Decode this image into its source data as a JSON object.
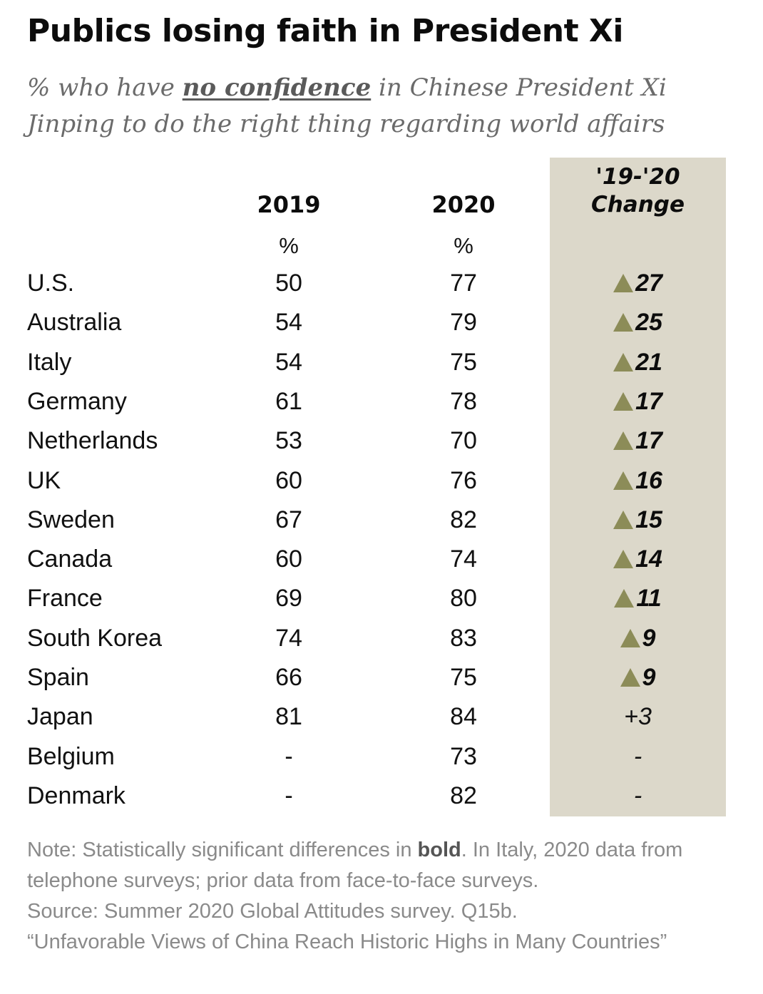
{
  "title": "Publics losing faith in President Xi",
  "subtitle": {
    "before": "% who have ",
    "emphasis": "no confidence",
    "after": " in Chinese President Xi Jinping to do the right thing regarding world affairs"
  },
  "columns": {
    "y2019": "2019",
    "y2020": "2020",
    "change_line1": "'19-'20",
    "change_line2": "Change",
    "unit": "%"
  },
  "colors": {
    "change_column_bg": "#dcd8ca",
    "increase_arrow": "#8c8c58"
  },
  "chart_data": {
    "type": "table",
    "title": "Publics losing faith in President Xi",
    "subtitle": "% who have no confidence in Chinese President Xi Jinping to do the right thing regarding world affairs",
    "headers": [
      "2019",
      "2020",
      "'19-'20 Change"
    ],
    "rows": [
      {
        "country": "U.S.",
        "y2019": "50",
        "y2020": "77",
        "change": "27",
        "significant": true,
        "arrow": true
      },
      {
        "country": "Australia",
        "y2019": "54",
        "y2020": "79",
        "change": "25",
        "significant": true,
        "arrow": true
      },
      {
        "country": "Italy",
        "y2019": "54",
        "y2020": "75",
        "change": "21",
        "significant": true,
        "arrow": true
      },
      {
        "country": "Germany",
        "y2019": "61",
        "y2020": "78",
        "change": "17",
        "significant": true,
        "arrow": true
      },
      {
        "country": "Netherlands",
        "y2019": "53",
        "y2020": "70",
        "change": "17",
        "significant": true,
        "arrow": true
      },
      {
        "country": "UK",
        "y2019": "60",
        "y2020": "76",
        "change": "16",
        "significant": true,
        "arrow": true
      },
      {
        "country": "Sweden",
        "y2019": "67",
        "y2020": "82",
        "change": "15",
        "significant": true,
        "arrow": true
      },
      {
        "country": "Canada",
        "y2019": "60",
        "y2020": "74",
        "change": "14",
        "significant": true,
        "arrow": true
      },
      {
        "country": "France",
        "y2019": "69",
        "y2020": "80",
        "change": "11",
        "significant": true,
        "arrow": true
      },
      {
        "country": "South Korea",
        "y2019": "74",
        "y2020": "83",
        "change": "9",
        "significant": true,
        "arrow": true
      },
      {
        "country": "Spain",
        "y2019": "66",
        "y2020": "75",
        "change": "9",
        "significant": true,
        "arrow": true
      },
      {
        "country": "Japan",
        "y2019": "81",
        "y2020": "84",
        "change": "+3",
        "significant": false,
        "arrow": false
      },
      {
        "country": "Belgium",
        "y2019": "-",
        "y2020": "73",
        "change": "-",
        "significant": false,
        "arrow": false
      },
      {
        "country": "Denmark",
        "y2019": "-",
        "y2020": "82",
        "change": "-",
        "significant": false,
        "arrow": false
      }
    ]
  },
  "note": {
    "part1": "Note: Statistically significant differences in ",
    "bold": "bold",
    "part2": ". In Italy, 2020 data from telephone surveys; prior data from face-to-face surveys.",
    "source": "Source: Summer 2020 Global Attitudes survey. Q15b.",
    "report": "“Unfavorable Views of China Reach Historic Highs in Many Countries”"
  }
}
